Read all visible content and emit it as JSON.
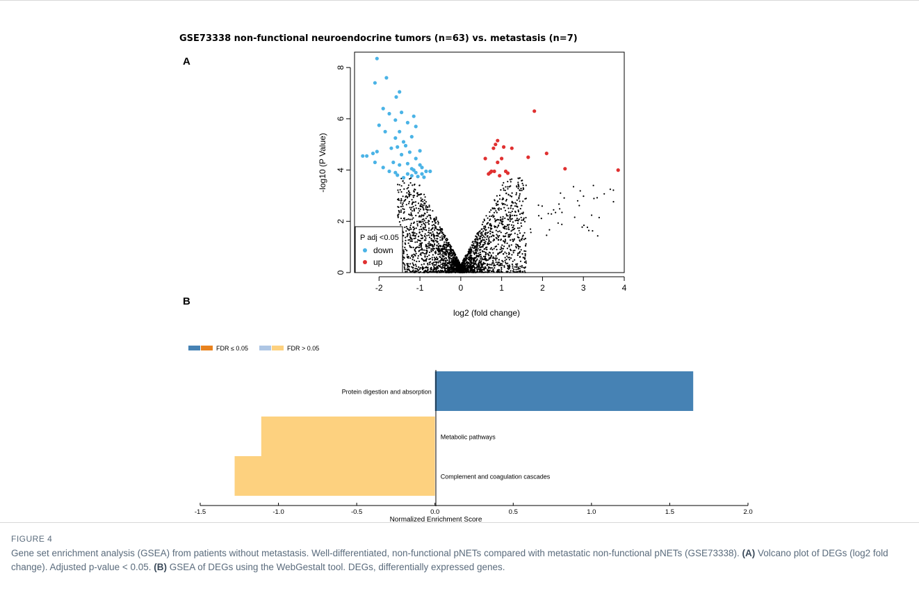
{
  "figure": {
    "title": "GSE73338 non-functional neuroendocrine tumors (n=63) vs. metastasis (n=7)",
    "panel_a_label": "A",
    "panel_b_label": "B",
    "figure_label": "FIGURE 4",
    "caption": [
      {
        "text": "Gene set enrichment analysis (GSEA) from patients without metastasis. Well-differentiated, non-functional pNETs compared with metastatic non-functional pNETs (GSE73338). ",
        "bold": false
      },
      {
        "text": "(A)",
        "bold": true
      },
      {
        "text": " Volcano plot of DEGs (log2 fold change). Adjusted p-value < 0.05. ",
        "bold": false
      },
      {
        "text": "(B)",
        "bold": true
      },
      {
        "text": " GSEA of DEGs using the WebGestalt tool. DEGs, differentially expressed genes.",
        "bold": false
      }
    ]
  },
  "chart_data": [
    {
      "type": "scatter",
      "title": "",
      "xlabel": "log2 (fold change)",
      "ylabel": "-log10 (P Value)",
      "xlim": [
        -2.6,
        4.0
      ],
      "ylim": [
        0,
        8.6
      ],
      "xticks": [
        -2,
        -1,
        0,
        1,
        2,
        3,
        4
      ],
      "yticks": [
        0,
        2,
        4,
        6,
        8
      ],
      "legend": {
        "title": "P adj <0.05",
        "position": "bottom-left",
        "entries": [
          {
            "label": "down",
            "color": "#4ab3e6"
          },
          {
            "label": "up",
            "color": "#e03030"
          }
        ]
      },
      "series": [
        {
          "name": "down",
          "color": "#4ab3e6",
          "points": [
            [
              -2.05,
              8.35
            ],
            [
              -1.82,
              7.6
            ],
            [
              -2.1,
              7.4
            ],
            [
              -1.5,
              7.05
            ],
            [
              -1.58,
              6.85
            ],
            [
              -1.9,
              6.4
            ],
            [
              -1.75,
              6.2
            ],
            [
              -1.15,
              6.1
            ],
            [
              -1.45,
              6.25
            ],
            [
              -1.6,
              5.95
            ],
            [
              -1.3,
              5.85
            ],
            [
              -2.0,
              5.75
            ],
            [
              -1.1,
              5.7
            ],
            [
              -1.5,
              5.5
            ],
            [
              -1.85,
              5.5
            ],
            [
              -1.2,
              5.3
            ],
            [
              -1.6,
              5.25
            ],
            [
              -1.4,
              5.1
            ],
            [
              -1.35,
              4.95
            ],
            [
              -1.55,
              4.9
            ],
            [
              -1.7,
              4.85
            ],
            [
              -1.0,
              4.75
            ],
            [
              -2.05,
              4.72
            ],
            [
              -1.25,
              4.7
            ],
            [
              -1.45,
              4.6
            ],
            [
              -1.1,
              4.45
            ],
            [
              -2.15,
              4.65
            ],
            [
              -2.3,
              4.55
            ],
            [
              -2.4,
              4.55
            ],
            [
              -1.65,
              4.3
            ],
            [
              -1.3,
              4.25
            ],
            [
              -1.5,
              4.2
            ],
            [
              -1.0,
              4.2
            ],
            [
              -0.95,
              4.1
            ],
            [
              -2.1,
              4.3
            ],
            [
              -1.9,
              4.1
            ],
            [
              -1.2,
              4.05
            ],
            [
              -0.85,
              3.95
            ],
            [
              -1.1,
              3.9
            ],
            [
              -1.3,
              3.85
            ],
            [
              -1.75,
              3.95
            ],
            [
              -1.6,
              3.9
            ],
            [
              -1.55,
              3.8
            ],
            [
              -0.75,
              3.95
            ],
            [
              -1.05,
              3.75
            ],
            [
              -0.9,
              3.72
            ],
            [
              -1.4,
              3.7
            ],
            [
              -1.2,
              3.78
            ],
            [
              -0.95,
              3.85
            ],
            [
              -1.15,
              4.0
            ]
          ]
        },
        {
          "name": "up",
          "color": "#e03030",
          "points": [
            [
              1.8,
              6.3
            ],
            [
              0.9,
              5.15
            ],
            [
              0.85,
              5.0
            ],
            [
              1.05,
              4.9
            ],
            [
              1.25,
              4.85
            ],
            [
              0.8,
              4.85
            ],
            [
              2.1,
              4.65
            ],
            [
              1.65,
              4.5
            ],
            [
              1.0,
              4.45
            ],
            [
              0.6,
              4.45
            ],
            [
              0.9,
              4.3
            ],
            [
              2.55,
              4.05
            ],
            [
              3.85,
              4.0
            ],
            [
              1.1,
              3.95
            ],
            [
              0.75,
              3.95
            ],
            [
              1.15,
              3.88
            ],
            [
              0.68,
              3.85
            ],
            [
              0.72,
              3.9
            ],
            [
              0.82,
              3.95
            ],
            [
              0.95,
              3.78
            ]
          ]
        }
      ]
    },
    {
      "type": "bar",
      "orientation": "horizontal",
      "title": "",
      "xlabel": "Normalized Enrichment Score",
      "ylabel": "",
      "xlim": [
        -1.5,
        2.0
      ],
      "xticks": [
        -1.5,
        -1.0,
        -0.5,
        0.0,
        0.5,
        1.0,
        1.5,
        2.0
      ],
      "xtick_labels": [
        "-1.5",
        "-1.0",
        "-0.5",
        "0.0",
        "0.5",
        "1.0",
        "1.5",
        "2.0"
      ],
      "categories": [
        "Protein digestion and absorption",
        "Metabolic pathways",
        "Complement and coagulation cascades"
      ],
      "values": [
        1.65,
        -1.11,
        -1.28
      ],
      "bar_colors": [
        "#4682b4",
        "#fdd17f",
        "#fdd17f"
      ],
      "legend": {
        "position": "top-left",
        "entries": [
          {
            "label": "FDR ≤ 0.05",
            "colors": [
              "#4682b4",
              "#e8821e"
            ]
          },
          {
            "label": "FDR > 0.05",
            "colors": [
              "#aec6e4",
              "#fdd17f"
            ]
          }
        ]
      }
    }
  ]
}
